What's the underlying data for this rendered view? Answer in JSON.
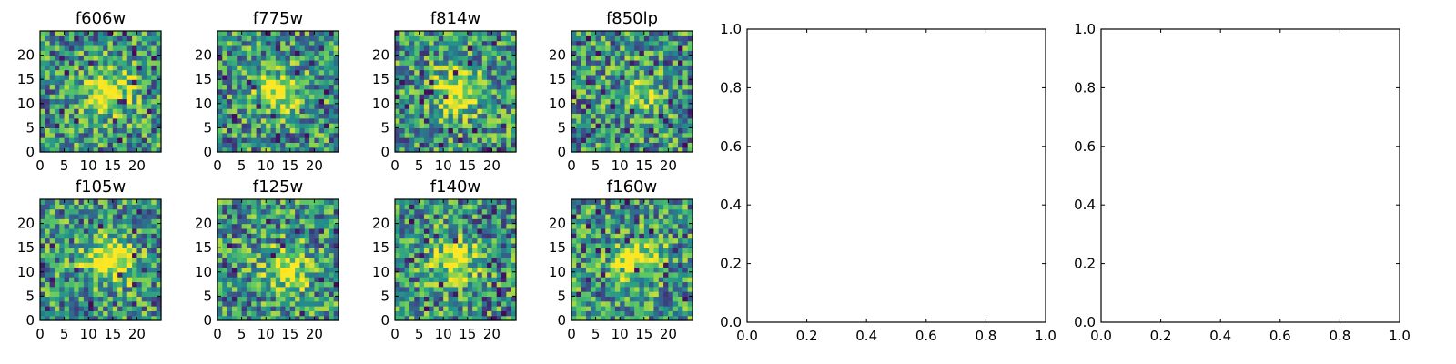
{
  "chart_data": [
    {
      "type": "heatmap",
      "title": "f606w",
      "xticks": [
        "0",
        "5",
        "10",
        "15",
        "20"
      ],
      "yticks": [
        "0",
        "5",
        "10",
        "15",
        "20"
      ],
      "xlim": [
        0,
        25
      ],
      "ylim": [
        0,
        25
      ],
      "grid_size": 25,
      "colormap": "viridis"
    },
    {
      "type": "heatmap",
      "title": "f775w",
      "xticks": [
        "0",
        "5",
        "10",
        "15",
        "20"
      ],
      "yticks": [
        "0",
        "5",
        "10",
        "15",
        "20"
      ],
      "xlim": [
        0,
        25
      ],
      "ylim": [
        0,
        25
      ],
      "grid_size": 25,
      "colormap": "viridis"
    },
    {
      "type": "heatmap",
      "title": "f814w",
      "xticks": [
        "0",
        "5",
        "10",
        "15",
        "20"
      ],
      "yticks": [
        "0",
        "5",
        "10",
        "15",
        "20"
      ],
      "xlim": [
        0,
        25
      ],
      "ylim": [
        0,
        25
      ],
      "grid_size": 25,
      "colormap": "viridis"
    },
    {
      "type": "heatmap",
      "title": "f850lp",
      "xticks": [
        "0",
        "5",
        "10",
        "15",
        "20"
      ],
      "yticks": [
        "0",
        "5",
        "10",
        "15",
        "20"
      ],
      "xlim": [
        0,
        25
      ],
      "ylim": [
        0,
        25
      ],
      "grid_size": 25,
      "colormap": "viridis"
    },
    {
      "type": "heatmap",
      "title": "f105w",
      "xticks": [
        "0",
        "5",
        "10",
        "15",
        "20"
      ],
      "yticks": [
        "0",
        "5",
        "10",
        "15",
        "20"
      ],
      "xlim": [
        0,
        25
      ],
      "ylim": [
        0,
        25
      ],
      "grid_size": 25,
      "colormap": "viridis"
    },
    {
      "type": "heatmap",
      "title": "f125w",
      "xticks": [
        "0",
        "5",
        "10",
        "15",
        "20"
      ],
      "yticks": [
        "0",
        "5",
        "10",
        "15",
        "20"
      ],
      "xlim": [
        0,
        25
      ],
      "ylim": [
        0,
        25
      ],
      "grid_size": 25,
      "colormap": "viridis"
    },
    {
      "type": "heatmap",
      "title": "f140w",
      "xticks": [
        "0",
        "5",
        "10",
        "15",
        "20"
      ],
      "yticks": [
        "0",
        "5",
        "10",
        "15",
        "20"
      ],
      "xlim": [
        0,
        25
      ],
      "ylim": [
        0,
        25
      ],
      "grid_size": 25,
      "colormap": "viridis"
    },
    {
      "type": "heatmap",
      "title": "f160w",
      "xticks": [
        "0",
        "5",
        "10",
        "15",
        "20"
      ],
      "yticks": [
        "0",
        "5",
        "10",
        "15",
        "20"
      ],
      "xlim": [
        0,
        25
      ],
      "ylim": [
        0,
        25
      ],
      "grid_size": 25,
      "colormap": "viridis"
    },
    {
      "type": "empty",
      "title": "",
      "xticks": [
        "0.0",
        "0.2",
        "0.4",
        "0.6",
        "0.8",
        "1.0"
      ],
      "yticks": [
        "0.0",
        "0.2",
        "0.4",
        "0.6",
        "0.8",
        "1.0"
      ],
      "xlim": [
        0,
        1
      ],
      "ylim": [
        0,
        1
      ]
    },
    {
      "type": "empty",
      "title": "",
      "xticks": [
        "0.0",
        "0.2",
        "0.4",
        "0.6",
        "0.8",
        "1.0"
      ],
      "yticks": [
        "0.0",
        "0.2",
        "0.4",
        "0.6",
        "0.8",
        "1.0"
      ],
      "xlim": [
        0,
        1
      ],
      "ylim": [
        0,
        1
      ]
    }
  ],
  "colors": {
    "viridis": [
      "#440154",
      "#3b528b",
      "#21918c",
      "#5ec962",
      "#fde725"
    ],
    "axis": "#000000",
    "background": "#ffffff"
  }
}
